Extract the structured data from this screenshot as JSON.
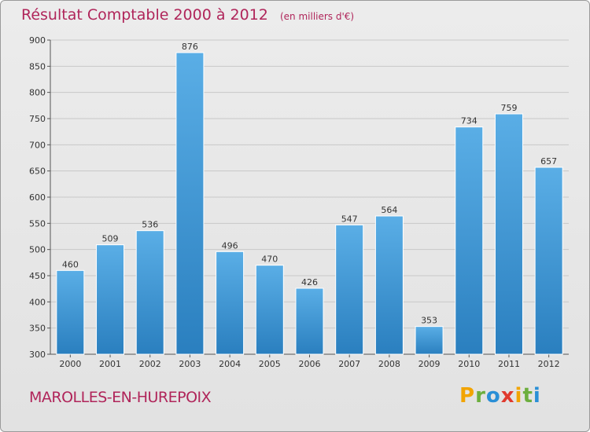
{
  "chart_data": {
    "type": "bar",
    "title": "Résultat Comptable 2000 à 2012",
    "subtitle": "(en milliers d'€)",
    "categories": [
      "2000",
      "2001",
      "2002",
      "2003",
      "2004",
      "2005",
      "2006",
      "2007",
      "2008",
      "2009",
      "2010",
      "2011",
      "2012"
    ],
    "values": [
      460,
      509,
      536,
      876,
      496,
      470,
      426,
      547,
      564,
      353,
      734,
      759,
      657
    ],
    "ylim": [
      300,
      900
    ],
    "yticks": [
      300,
      350,
      400,
      450,
      500,
      550,
      600,
      650,
      700,
      750,
      800,
      850,
      900
    ],
    "grid": true,
    "bar_color_top": "#5aaee6",
    "bar_color_bottom": "#2a7fbf"
  },
  "footer": {
    "commune": "MAROLLES-EN-HUREPOIX",
    "logo_letters": [
      "P",
      "r",
      "o",
      "x",
      "i",
      "t",
      "i"
    ],
    "logo_colors": [
      "#f2a400",
      "#6cae3e",
      "#2a8fd6",
      "#e03a2e",
      "#f2a400",
      "#6cae3e",
      "#2a8fd6"
    ]
  }
}
